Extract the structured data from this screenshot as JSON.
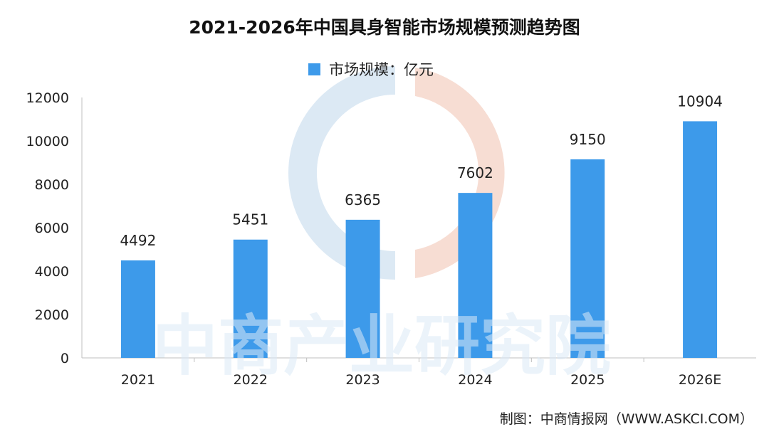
{
  "chart_data": {
    "type": "bar",
    "title": "2021-2026年中国具身智能市场规模预测趋势图",
    "legend": "市场规模：亿元",
    "legend_position": "top",
    "categories": [
      "2021",
      "2022",
      "2023",
      "2024",
      "2025",
      "2026E"
    ],
    "series": [
      {
        "name": "市场规模：亿元",
        "values": [
          4492,
          5451,
          6365,
          7602,
          9150,
          10904
        ]
      }
    ],
    "data_labels": [
      "4492",
      "5451",
      "6365",
      "7602",
      "9150",
      "10904"
    ],
    "ylim": [
      0,
      12000
    ],
    "yticks": [
      0,
      2000,
      4000,
      6000,
      8000,
      10000,
      12000
    ],
    "ytick_labels": [
      "0",
      "2000",
      "4000",
      "6000",
      "8000",
      "10000",
      "12000"
    ],
    "grid": false,
    "bar_color": "#3d9aea"
  },
  "watermark": {
    "text": "中商产业研究院",
    "color_text": "#dbe9f6",
    "color_blue": "#dce9f4",
    "color_red": "#f7ddd3"
  },
  "source": "制图：中商情报网（WWW.ASKCI.COM）"
}
